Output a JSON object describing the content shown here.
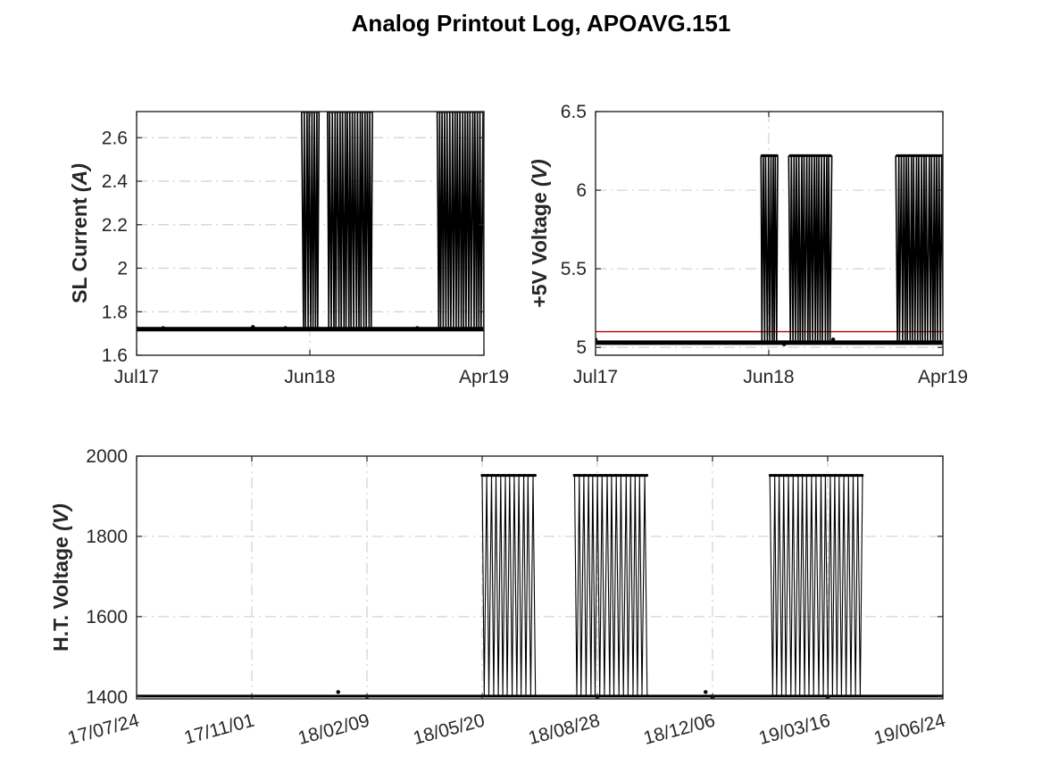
{
  "figure_title": "Analog Printout Log, APOAVG.151",
  "colors": {
    "data": "#000000",
    "limit": "#c00000",
    "grid": "#d0d0d0",
    "axis": "#262626"
  },
  "chart_data": [
    {
      "id": "sl-current",
      "type": "line",
      "ylabel": {
        "text": "SL Current ",
        "unit": "(A)"
      },
      "x_ticks": [
        "Jul17",
        "Jun18",
        "Apr19"
      ],
      "y_ticks": [
        "1.6",
        "1.8",
        "2",
        "2.2",
        "2.4",
        "2.6"
      ],
      "xlim": [
        "2017-07-24",
        "2019-04-15"
      ],
      "ylim": [
        1.6,
        2.72
      ],
      "grid": true,
      "baseline": 1.72,
      "high": 2.72,
      "dense_periods": [
        [
          "2018-05-20",
          "2018-06-20"
        ],
        [
          "2018-07-05",
          "2018-09-25"
        ],
        [
          "2019-01-20",
          "2019-04-15"
        ]
      ],
      "scattered_points": [
        [
          "2017-07-24",
          1.725
        ],
        [
          "2017-09-10",
          1.725
        ],
        [
          "2018-02-20",
          1.73
        ],
        [
          "2018-04-20",
          1.725
        ],
        [
          "2018-12-15",
          1.725
        ]
      ]
    },
    {
      "id": "plus5v-voltage",
      "type": "line",
      "ylabel": {
        "text": "+5V Voltage ",
        "unit": "(V)"
      },
      "x_ticks": [
        "Jul17",
        "Jun18",
        "Apr19"
      ],
      "y_ticks": [
        "5",
        "5.5",
        "6",
        "6.5"
      ],
      "xlim": [
        "2017-07-24",
        "2019-04-15"
      ],
      "ylim": [
        4.95,
        6.5
      ],
      "grid": true,
      "baseline": 5.03,
      "high": 6.22,
      "limits": [
        4.95,
        5.1
      ],
      "dense_periods": [
        [
          "2018-05-20",
          "2018-06-20"
        ],
        [
          "2018-07-10",
          "2018-09-25"
        ],
        [
          "2019-01-20",
          "2019-04-15"
        ]
      ],
      "scattered_points": [
        [
          "2017-07-24",
          5.05
        ],
        [
          "2018-07-01",
          5.02
        ],
        [
          "2018-09-28",
          5.05
        ]
      ]
    },
    {
      "id": "ht-voltage",
      "type": "line",
      "ylabel": {
        "text": "H.T. Voltage ",
        "unit": "(V)"
      },
      "x_ticks": [
        "17/07/24",
        "17/11/01",
        "18/02/09",
        "18/05/20",
        "18/08/28",
        "18/12/06",
        "19/03/16",
        "19/06/24"
      ],
      "y_ticks": [
        "1400",
        "1600",
        "1800",
        "2000"
      ],
      "xlim": [
        "2017-07-24",
        "2019-06-24"
      ],
      "ylim": [
        1395,
        2000
      ],
      "grid": true,
      "baseline": 1402,
      "high": 1952,
      "dense_periods": [
        [
          "2018-05-20",
          "2018-07-05"
        ],
        [
          "2018-08-08",
          "2018-10-10"
        ],
        [
          "2019-01-25",
          "2019-04-15"
        ]
      ],
      "scattered_points": [
        [
          "2018-01-15",
          1412
        ],
        [
          "2018-02-09",
          1394
        ],
        [
          "2018-08-28",
          1396
        ],
        [
          "2018-11-30",
          1412
        ],
        [
          "2018-12-06",
          1398
        ],
        [
          "2019-03-16",
          1396
        ]
      ]
    }
  ]
}
